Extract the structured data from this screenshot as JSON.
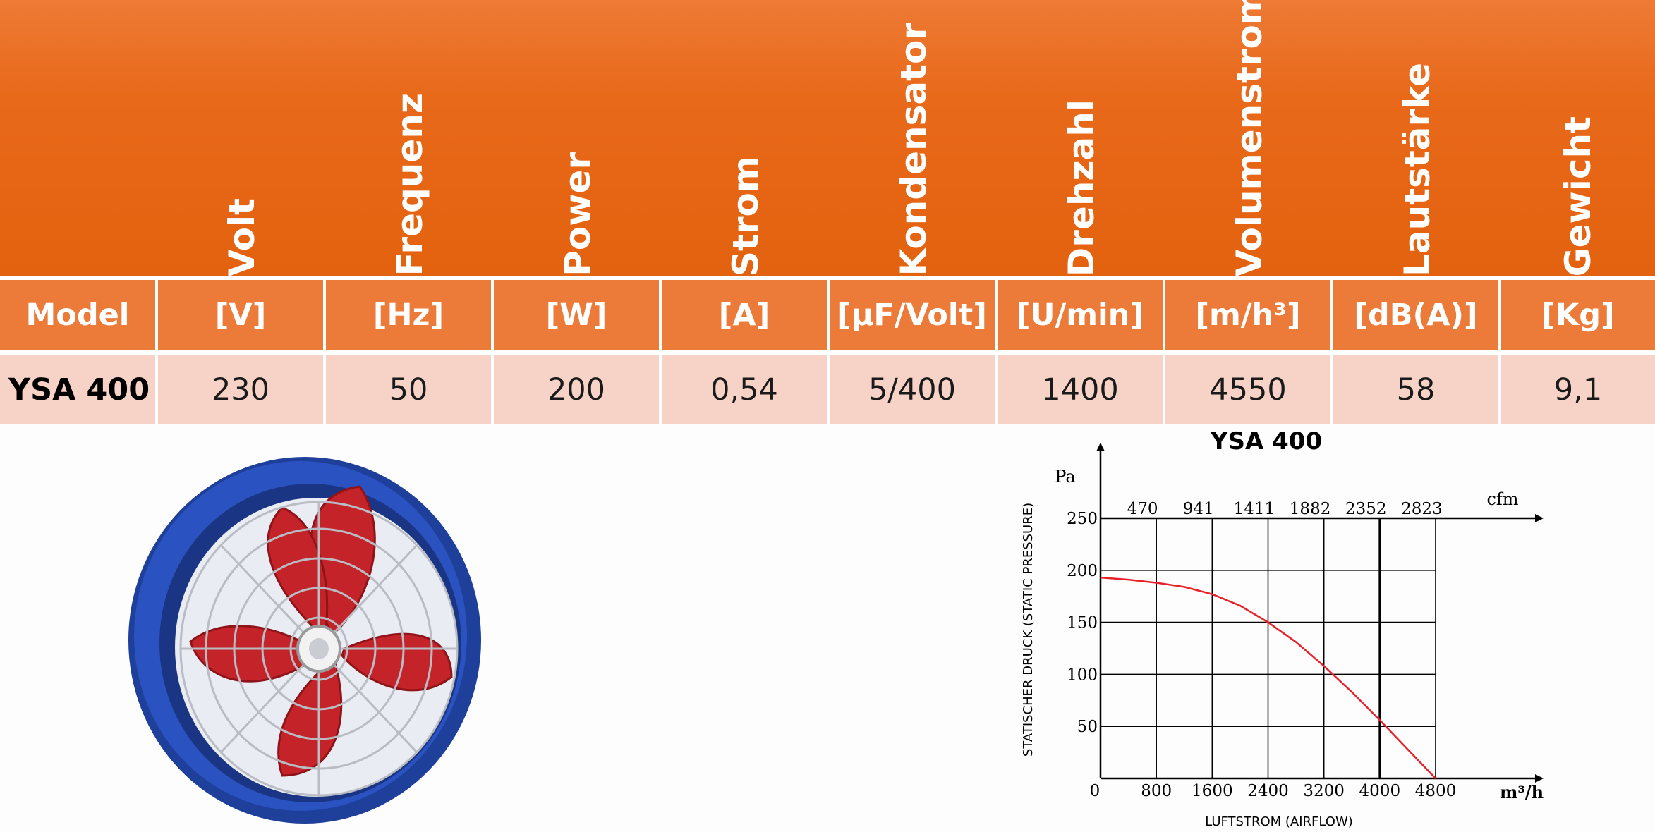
{
  "table": {
    "headers": [
      "Volt",
      "Frequenz",
      "Power",
      "Strom",
      "Kondensator",
      "Drehzahl",
      "Volumenstrom",
      "Lautstärke",
      "Gewicht"
    ],
    "units": [
      "Model",
      "[V]",
      "[Hz]",
      "[W]",
      "[A]",
      "[µF/Volt]",
      "[U/min]",
      "[m/h³]",
      "[dB(A)]",
      "[Kg]"
    ],
    "values": [
      "YSA 400",
      "230",
      "50",
      "200",
      "0,54",
      "5/400",
      "1400",
      "4550",
      "58",
      "9,1"
    ]
  },
  "product_image": {
    "icon": "axial-fan-icon",
    "colors": {
      "housing": "#1e3f9a",
      "blades": "#c4232a",
      "guard": "#c9c9c9"
    }
  },
  "chart_data": {
    "type": "line",
    "title": "YSA 400",
    "ylabel": "STATISCHER DRUCK (STATIC PRESSURE)",
    "xlabel": "LUFTSTROM (AIRFLOW)",
    "y_unit": "Pa",
    "x_unit": "m³/h",
    "x2_unit": "cfm",
    "x_ticks": [
      "0",
      "800",
      "1600",
      "2400",
      "3200",
      "4000",
      "4800"
    ],
    "x2_ticks": [
      "470",
      "941",
      "1411",
      "1882",
      "2352",
      "2823"
    ],
    "y_ticks": [
      "250",
      "200",
      "150",
      "100",
      "50"
    ],
    "xlim": [
      0,
      4800
    ],
    "ylim": [
      0,
      250
    ],
    "grid": true,
    "series": [
      {
        "color": "#e8202a",
        "x": [
          0,
          400,
          800,
          1200,
          1600,
          2000,
          2400,
          2800,
          3200,
          3600,
          4000,
          4400,
          4800
        ],
        "y": [
          193,
          191,
          188,
          184,
          177,
          166,
          150,
          131,
          108,
          83,
          56,
          28,
          0
        ]
      }
    ]
  }
}
